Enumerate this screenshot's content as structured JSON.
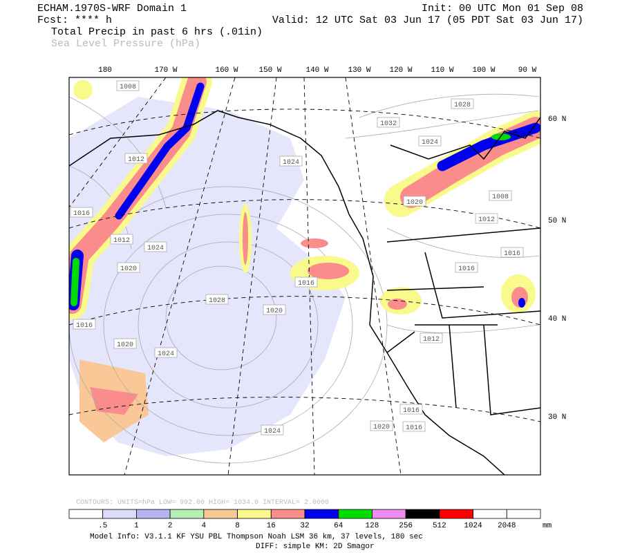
{
  "header": {
    "title": "ECHAM.1970S-WRF Domain 1",
    "fcst": "Fcst: **** h",
    "init": "Init: 00 UTC Mon 01 Sep 08",
    "valid": "Valid: 12 UTC Sat 03 Jun 17 (05 PDT Sat 03 Jun 17)",
    "field1": "Total Precip in past 6 hrs (.01in)",
    "field2": "Sea Level Pressure (hPa)"
  },
  "map": {
    "lon_labels": [
      "180",
      "170 W",
      "160 W",
      "150 W",
      "140 W",
      "130 W",
      "120 W",
      "110 W",
      "100 W",
      "90 W"
    ],
    "lat_labels": [
      "60 N",
      "50 N",
      "40 N",
      "30 N"
    ],
    "isobar_labels": [
      "1008",
      "1028",
      "1032",
      "1024",
      "1012",
      "1024",
      "1020",
      "1008",
      "1016",
      "1012",
      "1012",
      "1024",
      "1016",
      "1020",
      "1016",
      "1016",
      "1028",
      "1020",
      "1016",
      "1012",
      "1020",
      "1024",
      "1016",
      "1020",
      "1016",
      "1024"
    ]
  },
  "contour_info": "CONTOURS:  UNITS=hPa  LOW=  992.00     HIGH=  1034.0     INTERVAL=   2.0000",
  "colorbar": {
    "colors": [
      "#ffffff",
      "#dcdcfa",
      "#b4b4f0",
      "#b4f0b4",
      "#fac896",
      "#fafa8c",
      "#fa8c8c",
      "#0000f0",
      "#00dc00",
      "#f08cf0",
      "#000000",
      "#ff0000",
      "#ffffff",
      "#ffffff"
    ],
    "labels": [
      ".5",
      "1",
      "2",
      "4",
      "8",
      "16",
      "32",
      "64",
      "128",
      "256",
      "512",
      "1024",
      "2048"
    ],
    "unit": "mm"
  },
  "footer": {
    "line1": "Model Info: V3.1.1    KF      YSU PBL  Thompson    Noah LSM  36 km,   37 levels,  180 sec",
    "line2": "DIFF: simple KM: 2D Smagor"
  }
}
